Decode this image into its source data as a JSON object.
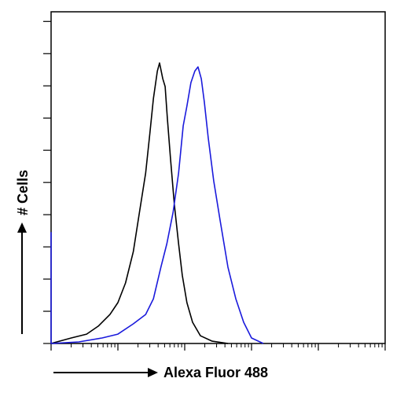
{
  "chart_data": {
    "type": "line",
    "xlabel": "Alexa Fluor 488",
    "ylabel": "# Cells",
    "xscale": "log",
    "xlim": [
      1,
      100000
    ],
    "xticks": [
      1,
      10,
      100,
      1000,
      10000,
      100000
    ],
    "ylim": [
      0,
      10.3
    ],
    "yticks": [
      0,
      1,
      2,
      3,
      4,
      5,
      6,
      7,
      8,
      9,
      10
    ],
    "series": [
      {
        "color": "#000000",
        "x": [
          1,
          2,
          3.4,
          5.1,
          7.6,
          10,
          13,
          17,
          21,
          26,
          30,
          34,
          39,
          42,
          47,
          51,
          55,
          61,
          70,
          81,
          92,
          108,
          131,
          172,
          258,
          445
        ],
        "values": [
          0,
          0.17,
          0.29,
          0.54,
          0.9,
          1.27,
          1.88,
          2.85,
          4.07,
          5.29,
          6.51,
          7.61,
          8.46,
          8.71,
          8.22,
          7.98,
          7.0,
          5.78,
          4.32,
          3.1,
          2.12,
          1.27,
          0.66,
          0.24,
          0.07,
          0
        ]
      },
      {
        "color": "#1a1adc",
        "x": [
          1,
          1,
          2.6,
          5.8,
          10,
          17,
          26,
          34,
          44,
          54,
          67,
          81,
          95,
          108,
          124,
          142,
          158,
          177,
          197,
          225,
          272,
          338,
          444,
          582,
          763,
          1000,
          1500
        ],
        "values": [
          3.46,
          0,
          0.05,
          0.17,
          0.29,
          0.61,
          0.9,
          1.39,
          2.37,
          3.1,
          4.07,
          5.29,
          6.76,
          7.37,
          8.1,
          8.46,
          8.59,
          8.22,
          7.49,
          6.39,
          5.05,
          3.83,
          2.37,
          1.39,
          0.66,
          0.17,
          0
        ]
      }
    ]
  }
}
